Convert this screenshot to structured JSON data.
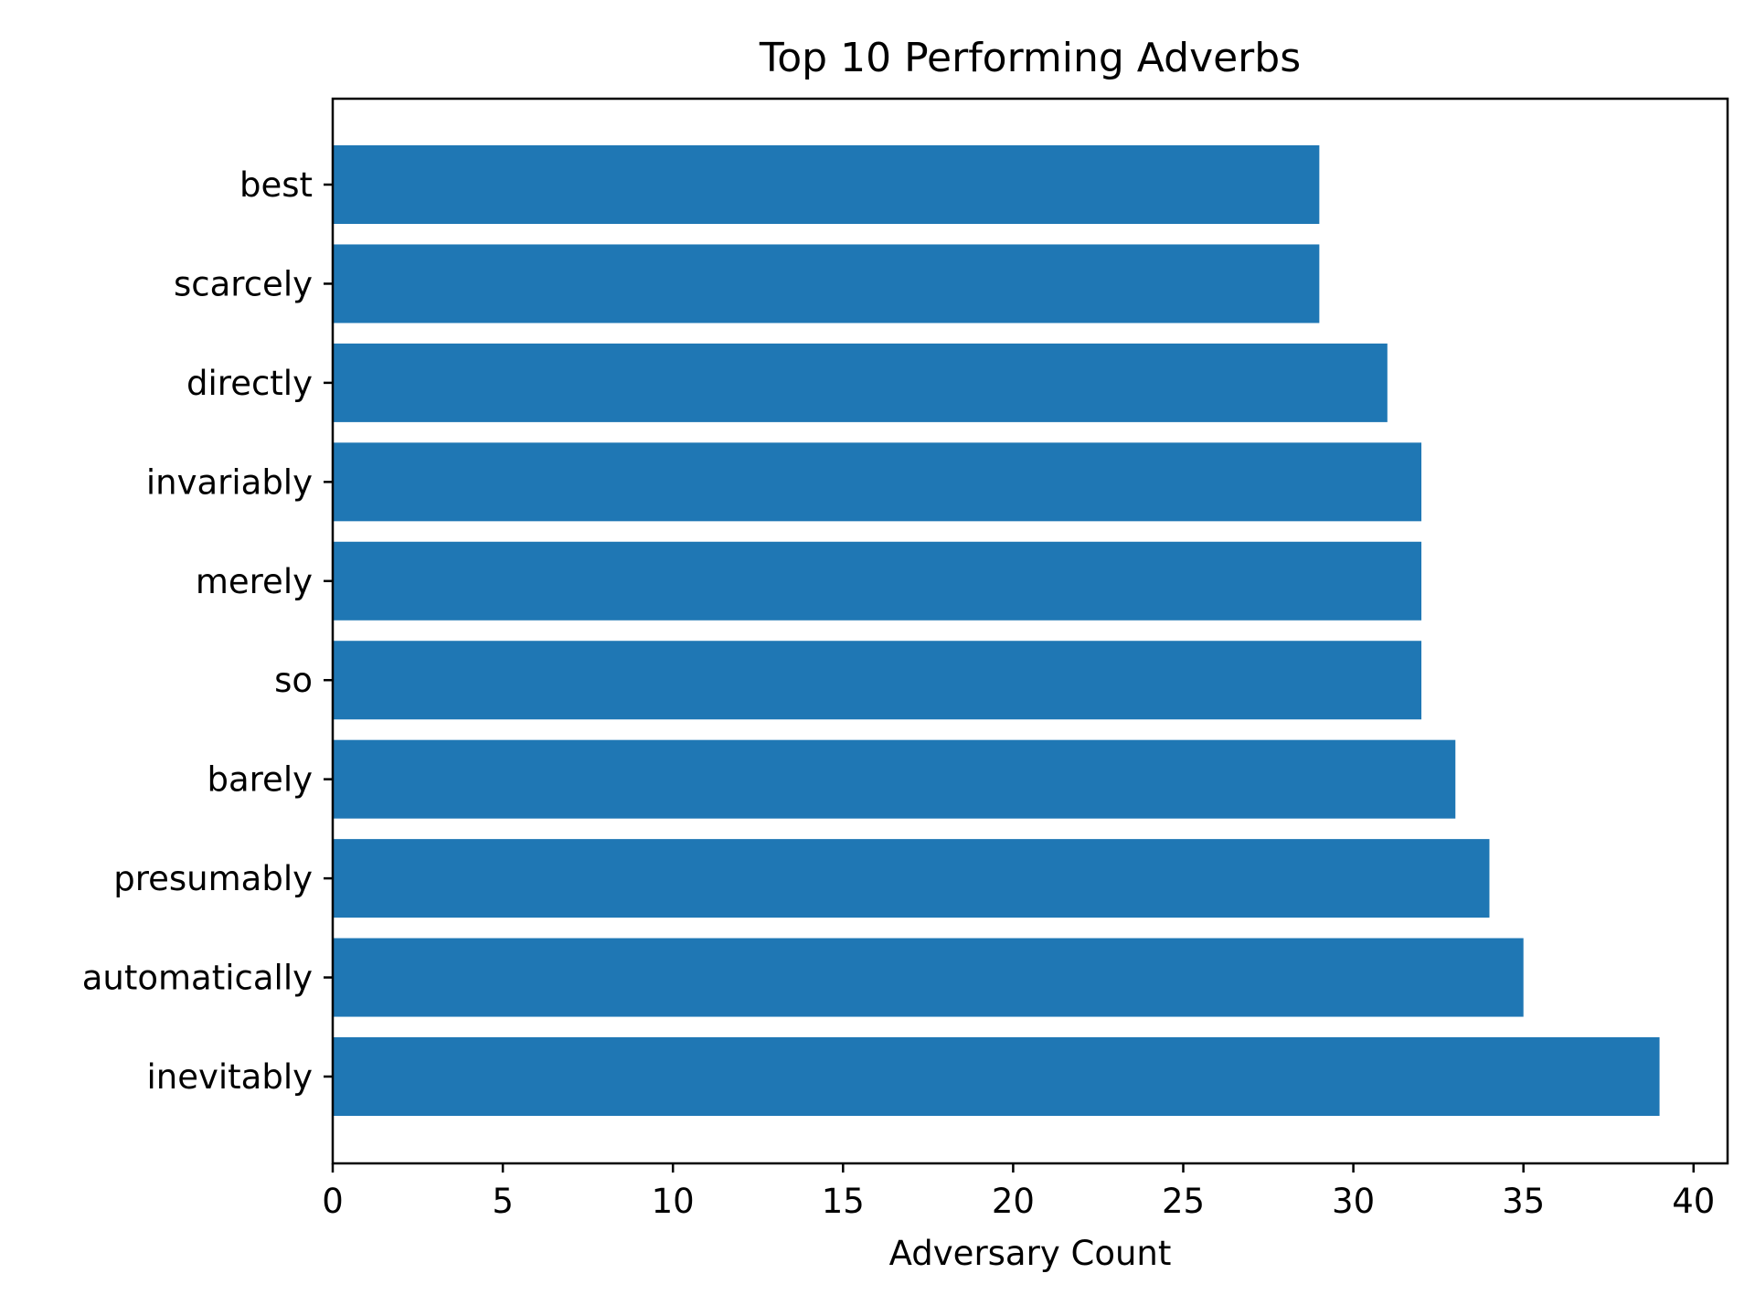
{
  "chart_data": {
    "type": "bar",
    "orientation": "horizontal",
    "title": "Top 10 Performing Adverbs",
    "xlabel": "Adversary Count",
    "ylabel": "",
    "categories": [
      "best",
      "scarcely",
      "directly",
      "invariably",
      "merely",
      "so",
      "barely",
      "presumably",
      "automatically",
      "inevitably"
    ],
    "values": [
      29,
      29,
      31,
      32,
      32,
      32,
      33,
      34,
      35,
      39
    ],
    "xlim": [
      0,
      41
    ],
    "xticks": [
      0,
      5,
      10,
      15,
      20,
      25,
      30,
      35,
      40
    ],
    "xtick_labels": [
      "0",
      "5",
      "10",
      "15",
      "20",
      "25",
      "30",
      "35",
      "40"
    ],
    "bar_color": "#1f77b4",
    "grid": false,
    "legend": "none"
  }
}
